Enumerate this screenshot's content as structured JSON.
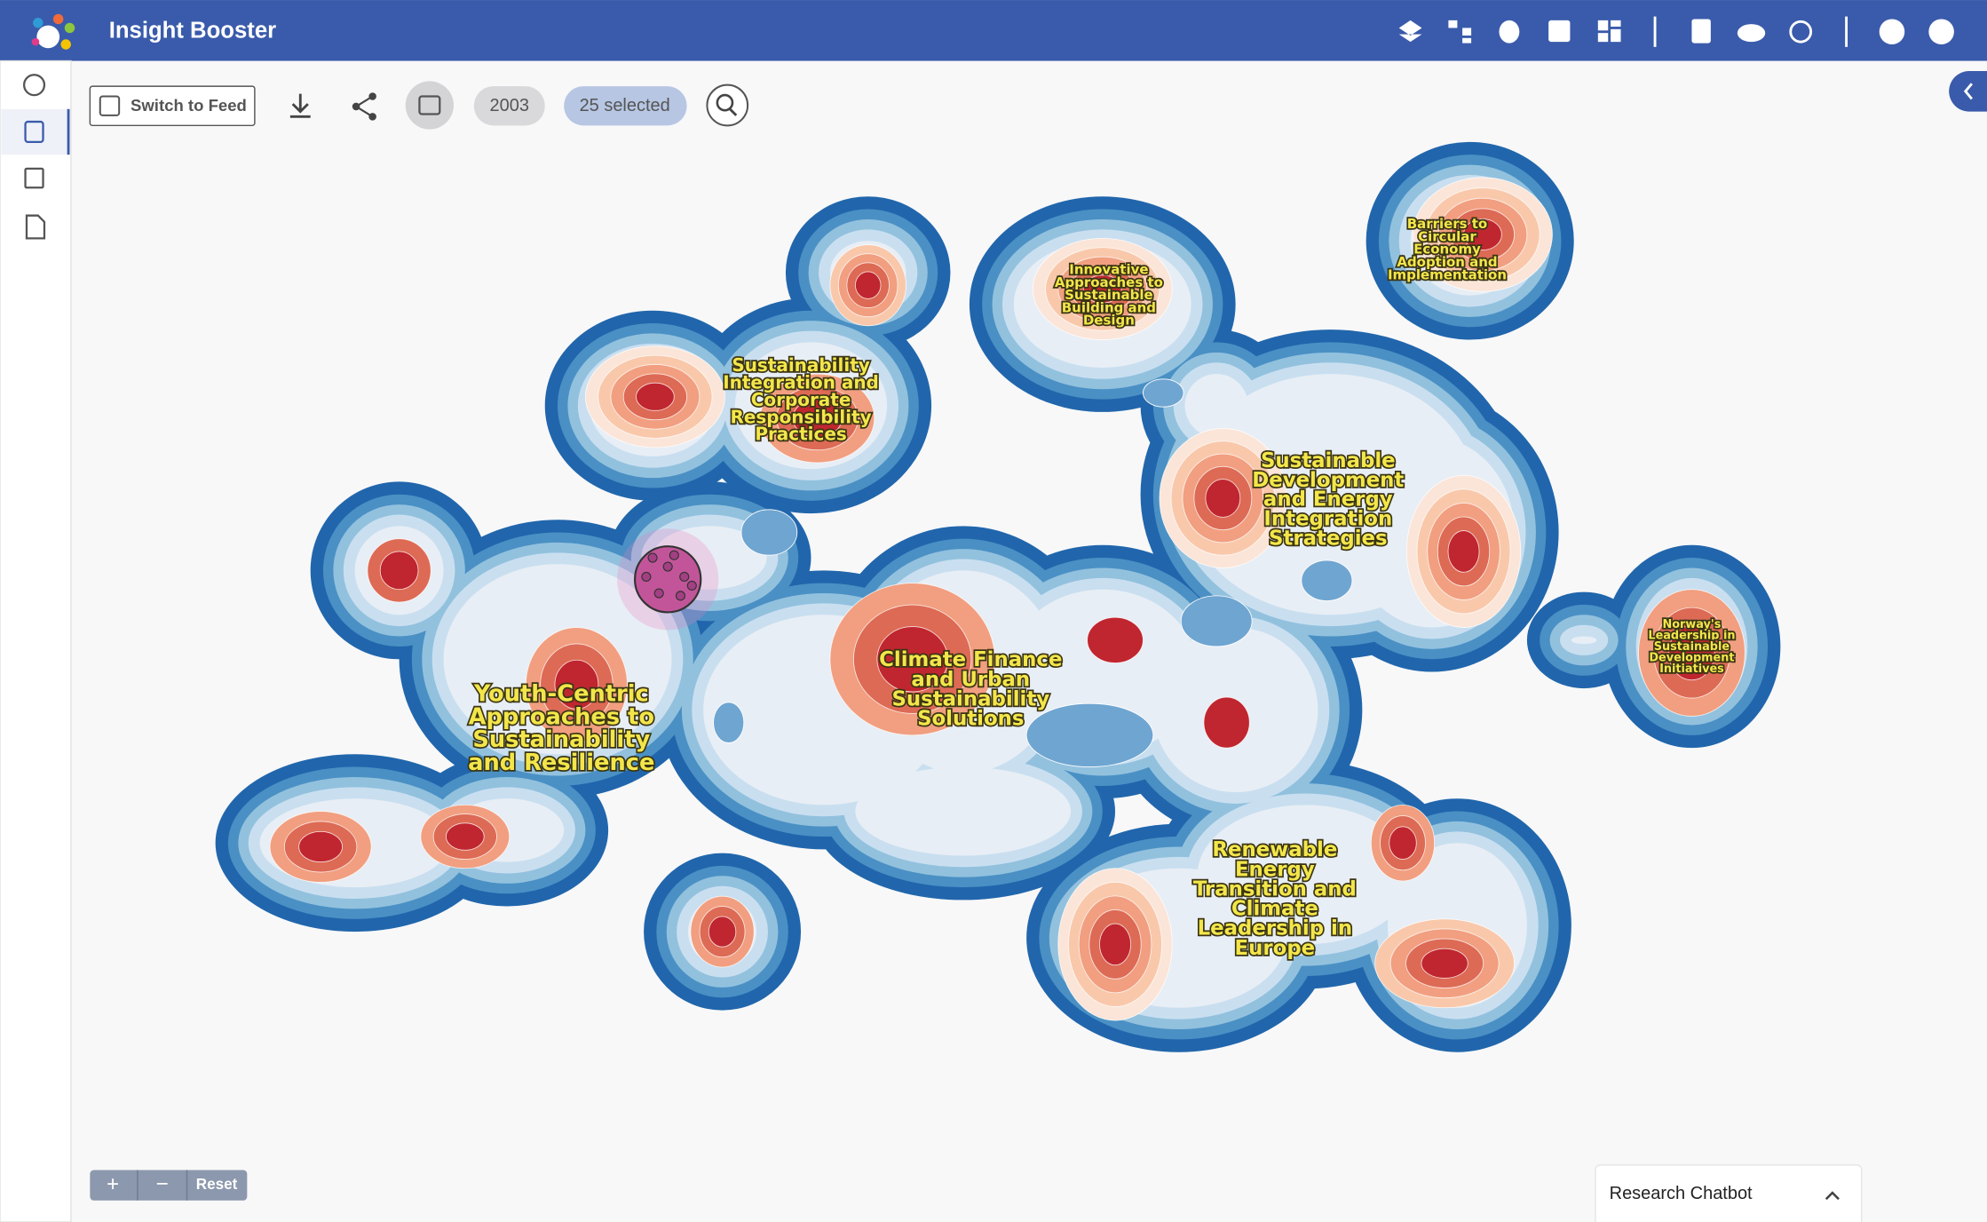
{
  "header": {
    "title": "Insight Booster"
  },
  "toolbar": {
    "switch_button": "Switch to Feed",
    "year": "2003",
    "selection": "25 selected"
  },
  "map": {
    "clusters": [
      {
        "lines": [
          "Sustainability",
          "Integration and",
          "Corporate",
          "Responsibility",
          "Practices"
        ]
      },
      {
        "lines": [
          "Innovative",
          "Approaches to",
          "Sustainable",
          "Building and",
          "Design"
        ]
      },
      {
        "lines": [
          "Barriers to",
          "Circular",
          "Economy",
          "Adoption and",
          "Implementation"
        ]
      },
      {
        "lines": [
          "Sustainable",
          "Development",
          "and Energy",
          "Integration",
          "Strategies"
        ]
      },
      {
        "lines": [
          "Climate Finance",
          "and Urban",
          "Sustainability",
          "Solutions"
        ]
      },
      {
        "lines": [
          "Youth-Centric",
          "Approaches to",
          "Sustainability",
          "and Resilience"
        ]
      },
      {
        "lines": [
          "Norway's",
          "Leadership in",
          "Sustainable",
          "Development",
          "Initiatives"
        ]
      },
      {
        "lines": [
          "Renewable",
          "Energy",
          "Transition and",
          "Climate",
          "Leadership in",
          "Europe"
        ]
      }
    ]
  },
  "zoom": {
    "plus": "+",
    "minus": "−",
    "reset": "Reset"
  },
  "chatbot": {
    "title": "Research Chatbot"
  }
}
